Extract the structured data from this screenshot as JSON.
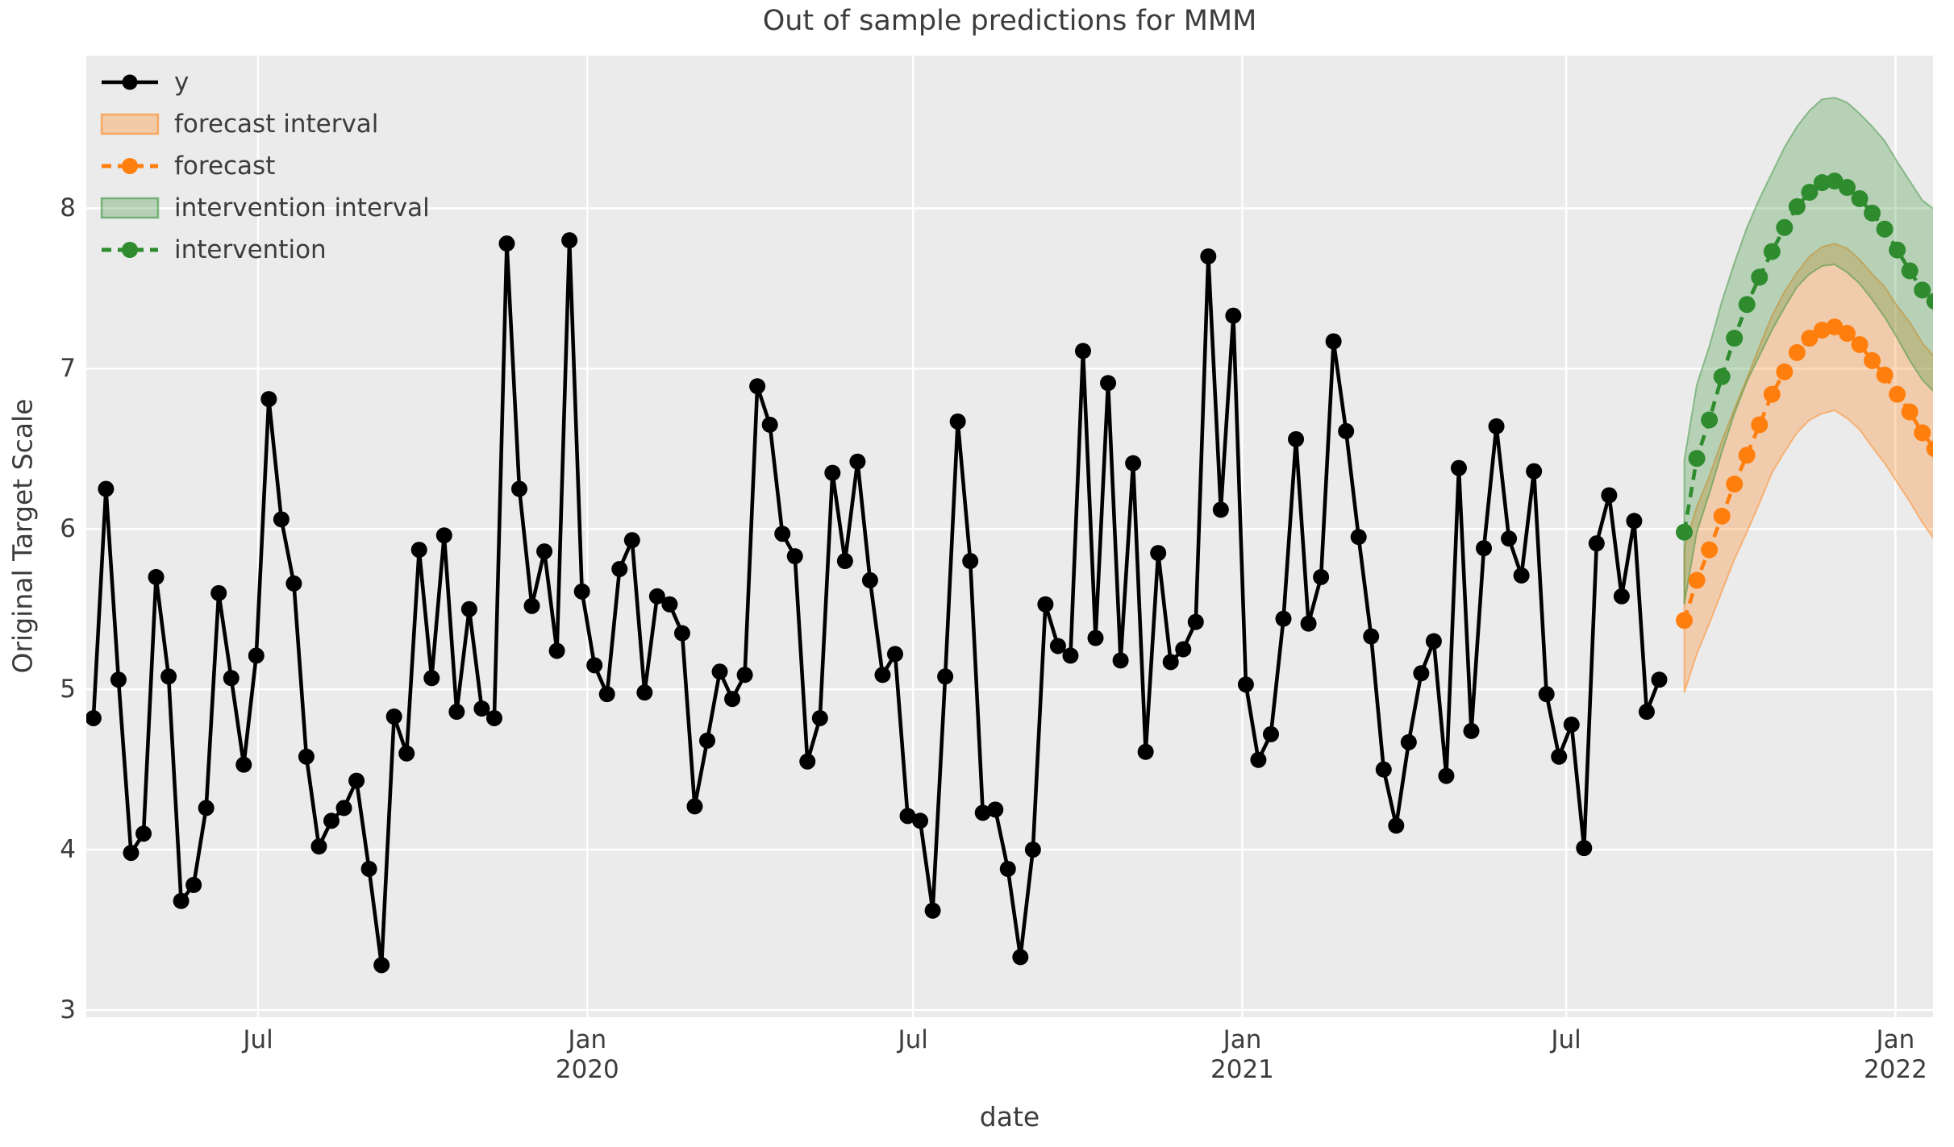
{
  "figure": {
    "title": "Out of sample predictions for MMM",
    "xlabel": "date",
    "ylabel": "Original Target Scale"
  },
  "chart_data": {
    "type": "line",
    "title": "Out of sample predictions for MMM",
    "xlabel": "date",
    "ylabel": "Original Target Scale",
    "plot_background": "#ebebeb",
    "grid": true,
    "grid_color": "#ffffff",
    "ylim": [
      2.955,
      8.952
    ],
    "xlim": [
      "2019-03-27",
      "2022-01-22"
    ],
    "yticks": [
      3,
      4,
      5,
      6,
      7,
      8
    ],
    "xticks": [
      {
        "date": "2019-07-01",
        "lines": [
          "Jul"
        ]
      },
      {
        "date": "2020-01-01",
        "lines": [
          "Jan",
          "2020"
        ]
      },
      {
        "date": "2020-07-01",
        "lines": [
          "Jul"
        ]
      },
      {
        "date": "2021-01-01",
        "lines": [
          "Jan",
          "2021"
        ]
      },
      {
        "date": "2021-07-01",
        "lines": [
          "Jul"
        ]
      },
      {
        "date": "2022-01-01",
        "lines": [
          "Jan",
          "2022"
        ]
      }
    ],
    "legend_position": "upper left",
    "legend": [
      {
        "label": "y",
        "kind": "line-marker",
        "color": "#000000",
        "dashed": false
      },
      {
        "label": "forecast interval",
        "kind": "patch",
        "color": "#ff7f0e"
      },
      {
        "label": "forecast",
        "kind": "line-marker",
        "color": "#ff7f0e",
        "dashed": true
      },
      {
        "label": "intervention interval",
        "kind": "patch",
        "color": "#2e8b2e"
      },
      {
        "label": "intervention",
        "kind": "line-marker",
        "color": "#2e8b2e",
        "dashed": true
      }
    ],
    "series": [
      {
        "name": "y",
        "color": "#000000",
        "dashed": false,
        "start_date": "2019-03-31",
        "freq_days": 7,
        "values": [
          4.82,
          6.25,
          5.06,
          3.98,
          4.1,
          5.7,
          5.08,
          3.68,
          3.78,
          4.26,
          5.6,
          5.07,
          4.53,
          5.21,
          6.81,
          6.06,
          5.66,
          4.58,
          4.02,
          4.18,
          4.26,
          4.43,
          3.88,
          3.28,
          4.83,
          4.6,
          5.87,
          5.07,
          5.96,
          4.86,
          5.5,
          4.88,
          4.82,
          7.78,
          6.25,
          5.52,
          5.86,
          5.24,
          7.8,
          5.61,
          5.15,
          4.97,
          5.75,
          5.93,
          4.98,
          5.58,
          5.53,
          5.35,
          4.27,
          4.68,
          5.11,
          4.94,
          5.09,
          6.89,
          6.65,
          5.97,
          5.83,
          4.55,
          4.82,
          6.35,
          5.8,
          6.42,
          5.68,
          5.09,
          5.22,
          4.21,
          4.18,
          3.62,
          5.08,
          6.67,
          5.8,
          4.23,
          4.25,
          3.88,
          3.33,
          4.0,
          5.53,
          5.27,
          5.21,
          7.11,
          5.32,
          6.91,
          5.18,
          6.41,
          4.61,
          5.85,
          5.17,
          5.25,
          5.42,
          7.7,
          6.12,
          7.33,
          5.03,
          4.56,
          4.72,
          5.44,
          6.56,
          5.41,
          5.7,
          7.17,
          6.61,
          5.95,
          5.33,
          4.5,
          4.15,
          4.67,
          5.1,
          5.3,
          4.46,
          6.38,
          4.74,
          5.88,
          6.64,
          5.94,
          5.71,
          6.36,
          4.97,
          4.58,
          4.78,
          4.01,
          5.91,
          6.21,
          5.58,
          6.05,
          4.86,
          5.06
        ]
      },
      {
        "name": "forecast",
        "color": "#ff7f0e",
        "dashed": true,
        "start_date": "2021-09-05",
        "freq_days": 7,
        "values": [
          5.43,
          5.68,
          5.87,
          6.08,
          6.28,
          6.46,
          6.65,
          6.84,
          6.98,
          7.1,
          7.19,
          7.24,
          7.26,
          7.22,
          7.15,
          7.05,
          6.96,
          6.84,
          6.73,
          6.6,
          6.5
        ],
        "interval_lo": [
          4.98,
          5.22,
          5.41,
          5.61,
          5.81,
          5.98,
          6.16,
          6.35,
          6.48,
          6.6,
          6.68,
          6.72,
          6.74,
          6.69,
          6.62,
          6.51,
          6.41,
          6.29,
          6.17,
          6.04,
          5.93
        ],
        "interval_hi": [
          5.88,
          6.14,
          6.33,
          6.55,
          6.75,
          6.94,
          7.14,
          7.33,
          7.48,
          7.6,
          7.7,
          7.76,
          7.78,
          7.75,
          7.68,
          7.59,
          7.51,
          7.39,
          7.29,
          7.16,
          7.07
        ],
        "interval_name": "forecast interval",
        "band_fill_opacity": 0.28
      },
      {
        "name": "intervention",
        "color": "#2e8b2e",
        "dashed": true,
        "start_date": "2021-09-05",
        "freq_days": 7,
        "values": [
          5.98,
          6.44,
          6.68,
          6.95,
          7.19,
          7.4,
          7.57,
          7.73,
          7.88,
          8.01,
          8.1,
          8.16,
          8.17,
          8.13,
          8.06,
          7.97,
          7.87,
          7.74,
          7.61,
          7.49,
          7.42
        ],
        "interval_lo": [
          5.53,
          5.98,
          6.22,
          6.48,
          6.72,
          6.92,
          7.08,
          7.24,
          7.38,
          7.51,
          7.59,
          7.64,
          7.65,
          7.6,
          7.53,
          7.43,
          7.32,
          7.19,
          7.05,
          6.93,
          6.85
        ],
        "interval_hi": [
          6.43,
          6.9,
          7.14,
          7.42,
          7.66,
          7.88,
          8.06,
          8.22,
          8.38,
          8.51,
          8.61,
          8.68,
          8.69,
          8.66,
          8.59,
          8.51,
          8.42,
          8.29,
          8.17,
          8.05,
          7.99
        ],
        "interval_name": "intervention interval",
        "band_fill_opacity": 0.27
      }
    ]
  }
}
